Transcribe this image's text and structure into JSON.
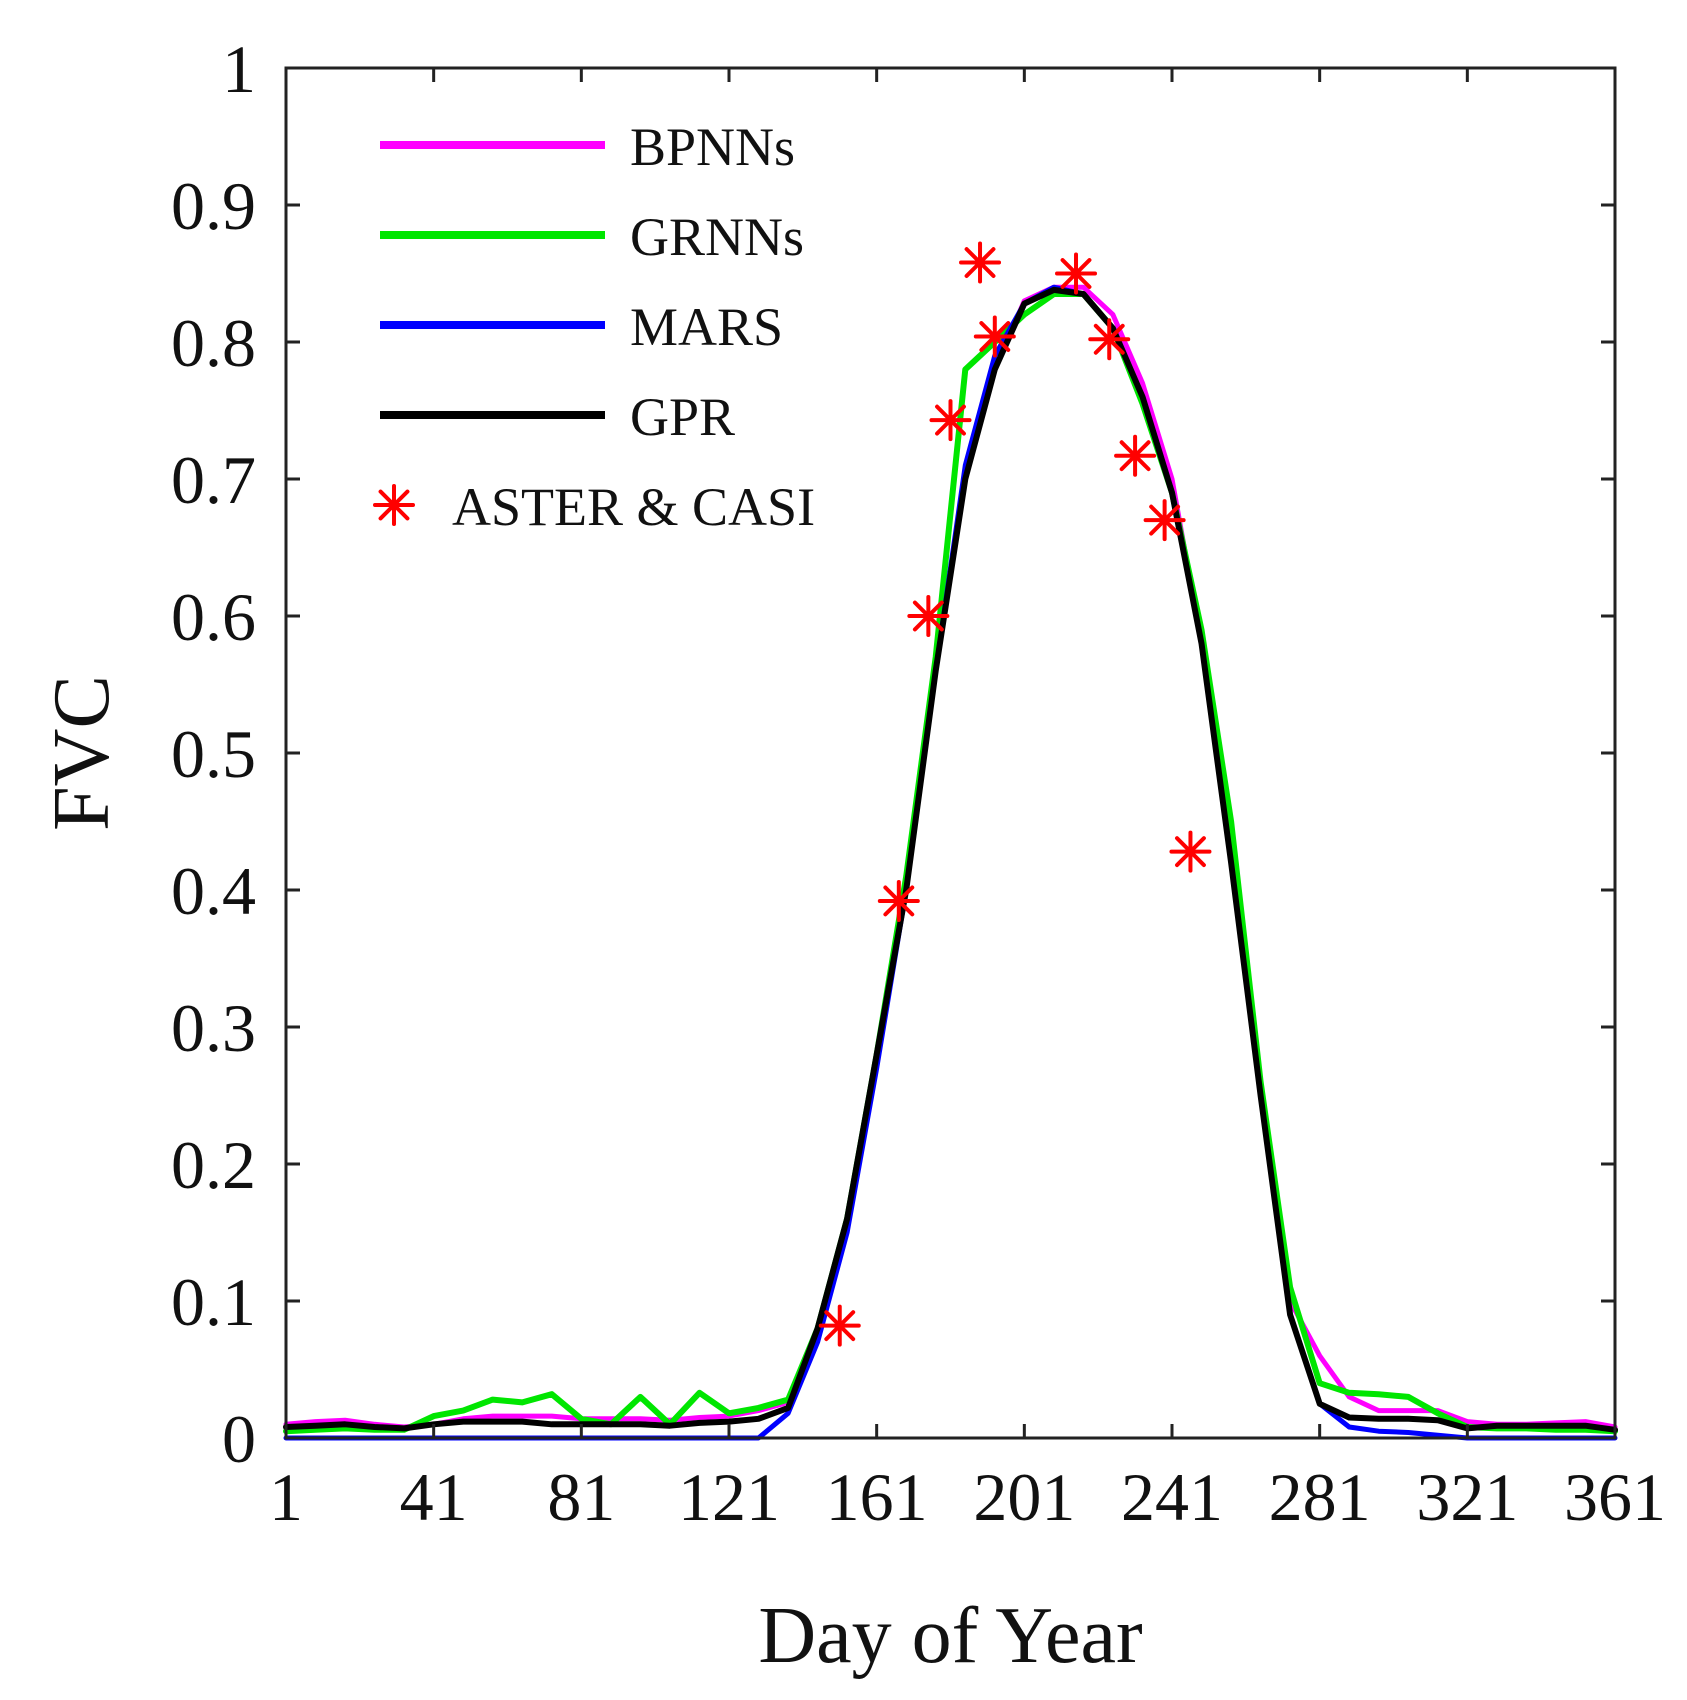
{
  "chart_data": {
    "type": "line",
    "title": "",
    "xlabel": "Day of Year",
    "ylabel": "FVC",
    "xlim": [
      1,
      361
    ],
    "ylim": [
      0,
      1
    ],
    "xticks": [
      1,
      41,
      81,
      121,
      161,
      201,
      241,
      281,
      321,
      361
    ],
    "yticks": [
      0,
      0.1,
      0.2,
      0.3,
      0.4,
      0.5,
      0.6,
      0.7,
      0.8,
      0.9,
      1
    ],
    "ytick_labels": [
      "0",
      "0.1",
      "0.2",
      "0.3",
      "0.4",
      "0.5",
      "0.6",
      "0.7",
      "0.8",
      "0.9",
      "1"
    ],
    "legend_position": "top-left",
    "series": [
      {
        "name": "BPNNs",
        "color": "#ff00ff",
        "points": [
          [
            1,
            0.01
          ],
          [
            9,
            0.012
          ],
          [
            17,
            0.013
          ],
          [
            25,
            0.01
          ],
          [
            33,
            0.008
          ],
          [
            41,
            0.01
          ],
          [
            49,
            0.014
          ],
          [
            57,
            0.016
          ],
          [
            65,
            0.016
          ],
          [
            73,
            0.016
          ],
          [
            81,
            0.014
          ],
          [
            89,
            0.014
          ],
          [
            97,
            0.014
          ],
          [
            105,
            0.013
          ],
          [
            113,
            0.015
          ],
          [
            121,
            0.016
          ],
          [
            129,
            0.02
          ],
          [
            137,
            0.026
          ],
          [
            145,
            0.08
          ],
          [
            153,
            0.16
          ],
          [
            161,
            0.28
          ],
          [
            169,
            0.4
          ],
          [
            177,
            0.56
          ],
          [
            185,
            0.7
          ],
          [
            193,
            0.78
          ],
          [
            201,
            0.83
          ],
          [
            209,
            0.84
          ],
          [
            217,
            0.84
          ],
          [
            225,
            0.82
          ],
          [
            233,
            0.77
          ],
          [
            241,
            0.7
          ],
          [
            249,
            0.58
          ],
          [
            257,
            0.42
          ],
          [
            265,
            0.25
          ],
          [
            273,
            0.1
          ],
          [
            281,
            0.06
          ],
          [
            289,
            0.03
          ],
          [
            297,
            0.02
          ],
          [
            305,
            0.02
          ],
          [
            313,
            0.02
          ],
          [
            321,
            0.012
          ],
          [
            329,
            0.01
          ],
          [
            337,
            0.01
          ],
          [
            345,
            0.011
          ],
          [
            353,
            0.012
          ],
          [
            361,
            0.008
          ]
        ]
      },
      {
        "name": "GRNNs",
        "color": "#00e600",
        "points": [
          [
            1,
            0.005
          ],
          [
            9,
            0.006
          ],
          [
            17,
            0.007
          ],
          [
            25,
            0.006
          ],
          [
            33,
            0.006
          ],
          [
            41,
            0.016
          ],
          [
            49,
            0.02
          ],
          [
            57,
            0.028
          ],
          [
            65,
            0.026
          ],
          [
            73,
            0.032
          ],
          [
            81,
            0.014
          ],
          [
            89,
            0.01
          ],
          [
            97,
            0.03
          ],
          [
            105,
            0.01
          ],
          [
            113,
            0.033
          ],
          [
            121,
            0.018
          ],
          [
            129,
            0.022
          ],
          [
            137,
            0.028
          ],
          [
            145,
            0.08
          ],
          [
            153,
            0.16
          ],
          [
            161,
            0.28
          ],
          [
            169,
            0.41
          ],
          [
            177,
            0.57
          ],
          [
            185,
            0.78
          ],
          [
            193,
            0.8
          ],
          [
            201,
            0.82
          ],
          [
            209,
            0.835
          ],
          [
            217,
            0.835
          ],
          [
            225,
            0.81
          ],
          [
            233,
            0.755
          ],
          [
            241,
            0.69
          ],
          [
            249,
            0.59
          ],
          [
            257,
            0.45
          ],
          [
            265,
            0.26
          ],
          [
            273,
            0.11
          ],
          [
            281,
            0.04
          ],
          [
            289,
            0.033
          ],
          [
            297,
            0.032
          ],
          [
            305,
            0.03
          ],
          [
            313,
            0.018
          ],
          [
            321,
            0.008
          ],
          [
            329,
            0.007
          ],
          [
            337,
            0.007
          ],
          [
            345,
            0.006
          ],
          [
            353,
            0.006
          ],
          [
            361,
            0.005
          ]
        ]
      },
      {
        "name": "MARS",
        "color": "#0000ff",
        "points": [
          [
            1,
            0
          ],
          [
            9,
            0
          ],
          [
            17,
            0
          ],
          [
            25,
            0
          ],
          [
            33,
            0
          ],
          [
            41,
            0
          ],
          [
            49,
            0
          ],
          [
            57,
            0
          ],
          [
            65,
            0
          ],
          [
            73,
            0
          ],
          [
            81,
            0
          ],
          [
            89,
            0
          ],
          [
            97,
            0
          ],
          [
            105,
            0
          ],
          [
            113,
            0
          ],
          [
            121,
            0
          ],
          [
            129,
            0
          ],
          [
            137,
            0.018
          ],
          [
            145,
            0.07
          ],
          [
            153,
            0.15
          ],
          [
            161,
            0.27
          ],
          [
            169,
            0.4
          ],
          [
            177,
            0.56
          ],
          [
            185,
            0.71
          ],
          [
            193,
            0.79
          ],
          [
            201,
            0.828
          ],
          [
            209,
            0.84
          ],
          [
            217,
            0.835
          ],
          [
            225,
            0.81
          ],
          [
            233,
            0.76
          ],
          [
            241,
            0.69
          ],
          [
            249,
            0.58
          ],
          [
            257,
            0.42
          ],
          [
            265,
            0.25
          ],
          [
            273,
            0.09
          ],
          [
            281,
            0.025
          ],
          [
            289,
            0.008
          ],
          [
            297,
            0.005
          ],
          [
            305,
            0.004
          ],
          [
            313,
            0.002
          ],
          [
            321,
            0
          ],
          [
            329,
            0
          ],
          [
            337,
            0
          ],
          [
            345,
            0
          ],
          [
            353,
            0
          ],
          [
            361,
            0
          ]
        ]
      },
      {
        "name": "GPR",
        "color": "#000000",
        "points": [
          [
            1,
            0.008
          ],
          [
            9,
            0.009
          ],
          [
            17,
            0.01
          ],
          [
            25,
            0.008
          ],
          [
            33,
            0.007
          ],
          [
            41,
            0.01
          ],
          [
            49,
            0.012
          ],
          [
            57,
            0.012
          ],
          [
            65,
            0.012
          ],
          [
            73,
            0.01
          ],
          [
            81,
            0.01
          ],
          [
            89,
            0.01
          ],
          [
            97,
            0.01
          ],
          [
            105,
            0.009
          ],
          [
            113,
            0.011
          ],
          [
            121,
            0.012
          ],
          [
            129,
            0.014
          ],
          [
            137,
            0.022
          ],
          [
            145,
            0.08
          ],
          [
            153,
            0.16
          ],
          [
            161,
            0.28
          ],
          [
            169,
            0.4
          ],
          [
            177,
            0.56
          ],
          [
            185,
            0.7
          ],
          [
            193,
            0.78
          ],
          [
            201,
            0.828
          ],
          [
            209,
            0.838
          ],
          [
            217,
            0.835
          ],
          [
            225,
            0.81
          ],
          [
            233,
            0.76
          ],
          [
            241,
            0.69
          ],
          [
            249,
            0.58
          ],
          [
            257,
            0.42
          ],
          [
            265,
            0.25
          ],
          [
            273,
            0.09
          ],
          [
            281,
            0.025
          ],
          [
            289,
            0.015
          ],
          [
            297,
            0.014
          ],
          [
            305,
            0.014
          ],
          [
            313,
            0.013
          ],
          [
            321,
            0.007
          ],
          [
            329,
            0.009
          ],
          [
            337,
            0.009
          ],
          [
            345,
            0.009
          ],
          [
            353,
            0.009
          ],
          [
            361,
            0.006
          ]
        ]
      },
      {
        "name": "ASTER & CASI",
        "color": "#ff0000",
        "marker": "asterisk",
        "points": [
          [
            151,
            0.082
          ],
          [
            167,
            0.392
          ],
          [
            175,
            0.6
          ],
          [
            181,
            0.743
          ],
          [
            189,
            0.858
          ],
          [
            193,
            0.804
          ],
          [
            215,
            0.85
          ],
          [
            224,
            0.802
          ],
          [
            231,
            0.717
          ],
          [
            239,
            0.67
          ],
          [
            246,
            0.428
          ]
        ]
      }
    ]
  }
}
